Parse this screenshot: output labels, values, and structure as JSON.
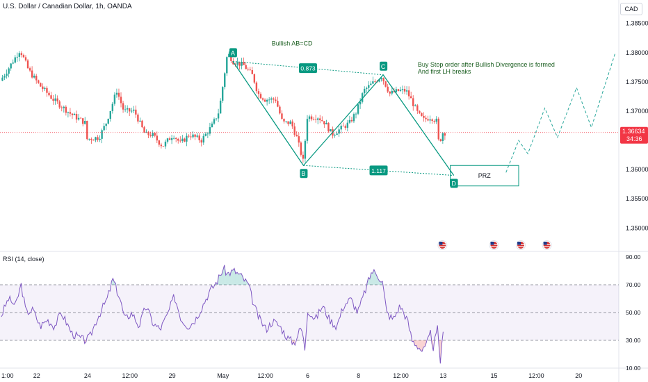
{
  "header": {
    "title": "U.S. Dollar / Canadian Dollar, 1h, OANDA"
  },
  "currency_button": "CAD",
  "colors": {
    "up": "#26a69a",
    "down": "#ef5350",
    "pattern": "#089981",
    "text_green": "#1b5e20",
    "rsi": "#7e57c2",
    "price_line": "#f23645"
  },
  "chart_data": [
    {
      "type": "candlestick",
      "title": "U.S. Dollar / Canadian Dollar, 1h, OANDA",
      "ylim": [
        1.346,
        1.389
      ],
      "y_ticks": [
        "1.38500",
        "1.38000",
        "1.37500",
        "1.37000",
        "1.36500",
        "1.36000",
        "1.35500",
        "1.35000"
      ],
      "x_ticks": [
        "1:00",
        "22",
        "24",
        "12:00",
        "29",
        "May",
        "12:00",
        "6",
        "8",
        "12:00",
        "13",
        "15",
        "12:00",
        "20"
      ],
      "x_tick_hours": [
        0,
        50,
        122,
        182,
        242,
        314,
        374,
        434,
        506,
        566,
        626,
        698,
        758,
        818
      ],
      "current_price": "1.36634",
      "countdown": "34:36",
      "price_path": [
        [
          0,
          1.3752
        ],
        [
          10,
          1.377
        ],
        [
          28,
          1.3805
        ],
        [
          40,
          1.377
        ],
        [
          55,
          1.3745
        ],
        [
          75,
          1.372
        ],
        [
          100,
          1.3695
        ],
        [
          120,
          1.368
        ],
        [
          122,
          1.3652
        ],
        [
          140,
          1.3655
        ],
        [
          150,
          1.368
        ],
        [
          165,
          1.3735
        ],
        [
          175,
          1.37
        ],
        [
          190,
          1.37
        ],
        [
          205,
          1.366
        ],
        [
          215,
          1.366
        ],
        [
          230,
          1.364
        ],
        [
          245,
          1.366
        ],
        [
          255,
          1.3645
        ],
        [
          268,
          1.366
        ],
        [
          285,
          1.365
        ],
        [
          300,
          1.3675
        ],
        [
          310,
          1.37
        ],
        [
          322,
          1.38
        ],
        [
          330,
          1.3785
        ],
        [
          345,
          1.3778
        ],
        [
          358,
          1.376
        ],
        [
          365,
          1.373
        ],
        [
          375,
          1.372
        ],
        [
          390,
          1.372
        ],
        [
          400,
          1.368
        ],
        [
          412,
          1.368
        ],
        [
          420,
          1.3655
        ],
        [
          430,
          1.361
        ],
        [
          434,
          1.369
        ],
        [
          450,
          1.369
        ],
        [
          460,
          1.368
        ],
        [
          470,
          1.366
        ],
        [
          480,
          1.3668
        ],
        [
          495,
          1.368
        ],
        [
          505,
          1.37
        ],
        [
          515,
          1.3735
        ],
        [
          525,
          1.3745
        ],
        [
          540,
          1.376
        ],
        [
          552,
          1.373
        ],
        [
          565,
          1.3735
        ],
        [
          575,
          1.3735
        ],
        [
          582,
          1.372
        ],
        [
          592,
          1.3695
        ],
        [
          600,
          1.3685
        ],
        [
          610,
          1.369
        ],
        [
          618,
          1.3683
        ],
        [
          622,
          1.3638
        ],
        [
          625,
          1.366
        ],
        [
          627,
          1.3663
        ]
      ],
      "pattern": {
        "name": "Bullish AB=CD",
        "points": [
          {
            "label": "A",
            "x": 328,
            "y": 1.3785
          },
          {
            "label": "B",
            "x": 428,
            "y": 1.3607
          },
          {
            "label": "C",
            "x": 541,
            "y": 1.3762
          },
          {
            "label": "D",
            "x": 641,
            "y": 1.359
          }
        ],
        "ratios": [
          "0.873",
          "1.117"
        ],
        "prz_label": "PRZ",
        "prz_range": [
          1.3572,
          1.3607
        ]
      },
      "annotation": [
        "Buy Stop order after Bullish Divergence is formed",
        "And first LH breaks"
      ],
      "projection": [
        [
          715,
          1.3595
        ],
        [
          733,
          1.365
        ],
        [
          746,
          1.3627
        ],
        [
          770,
          1.3705
        ],
        [
          788,
          1.3655
        ],
        [
          815,
          1.374
        ],
        [
          836,
          1.3672
        ],
        [
          870,
          1.38
        ]
      ],
      "event_marker_hours": [
        625,
        698,
        736,
        773
      ]
    },
    {
      "type": "line",
      "title": "RSI (14, close)",
      "ylim": [
        10,
        90
      ],
      "y_ticks": [
        "90.00",
        "70.00",
        "50.00",
        "30.00",
        "10.00"
      ],
      "levels": [
        70,
        50,
        30
      ],
      "series": [
        {
          "name": "RSI (14, close)",
          "points": [
            [
              0,
              48
            ],
            [
              10,
              60
            ],
            [
              20,
              55
            ],
            [
              28,
              70
            ],
            [
              35,
              50
            ],
            [
              45,
              52
            ],
            [
              55,
              40
            ],
            [
              65,
              45
            ],
            [
              75,
              40
            ],
            [
              85,
              50
            ],
            [
              100,
              35
            ],
            [
              110,
              32
            ],
            [
              118,
              30
            ],
            [
              125,
              32
            ],
            [
              135,
              45
            ],
            [
              150,
              60
            ],
            [
              158,
              74
            ],
            [
              168,
              60
            ],
            [
              175,
              45
            ],
            [
              185,
              50
            ],
            [
              195,
              40
            ],
            [
              205,
              55
            ],
            [
              215,
              42
            ],
            [
              225,
              38
            ],
            [
              235,
              48
            ],
            [
              245,
              62
            ],
            [
              255,
              45
            ],
            [
              265,
              40
            ],
            [
              275,
              45
            ],
            [
              285,
              55
            ],
            [
              295,
              65
            ],
            [
              305,
              72
            ],
            [
              315,
              82
            ],
            [
              320,
              78
            ],
            [
              330,
              80
            ],
            [
              340,
              76
            ],
            [
              350,
              70
            ],
            [
              358,
              55
            ],
            [
              365,
              46
            ],
            [
              375,
              38
            ],
            [
              385,
              44
            ],
            [
              395,
              40
            ],
            [
              405,
              32
            ],
            [
              415,
              28
            ],
            [
              425,
              40
            ],
            [
              430,
              24
            ],
            [
              434,
              52
            ],
            [
              445,
              45
            ],
            [
              455,
              55
            ],
            [
              465,
              45
            ],
            [
              475,
              40
            ],
            [
              485,
              55
            ],
            [
              495,
              60
            ],
            [
              505,
              50
            ],
            [
              515,
              65
            ],
            [
              525,
              80
            ],
            [
              532,
              78
            ],
            [
              540,
              72
            ],
            [
              546,
              50
            ],
            [
              555,
              45
            ],
            [
              565,
              55
            ],
            [
              575,
              45
            ],
            [
              582,
              30
            ],
            [
              590,
              26
            ],
            [
              597,
              22
            ],
            [
              602,
              26
            ],
            [
              608,
              35
            ],
            [
              612,
              25
            ],
            [
              618,
              38
            ],
            [
              622,
              15
            ],
            [
              627,
              40
            ]
          ]
        }
      ]
    }
  ]
}
